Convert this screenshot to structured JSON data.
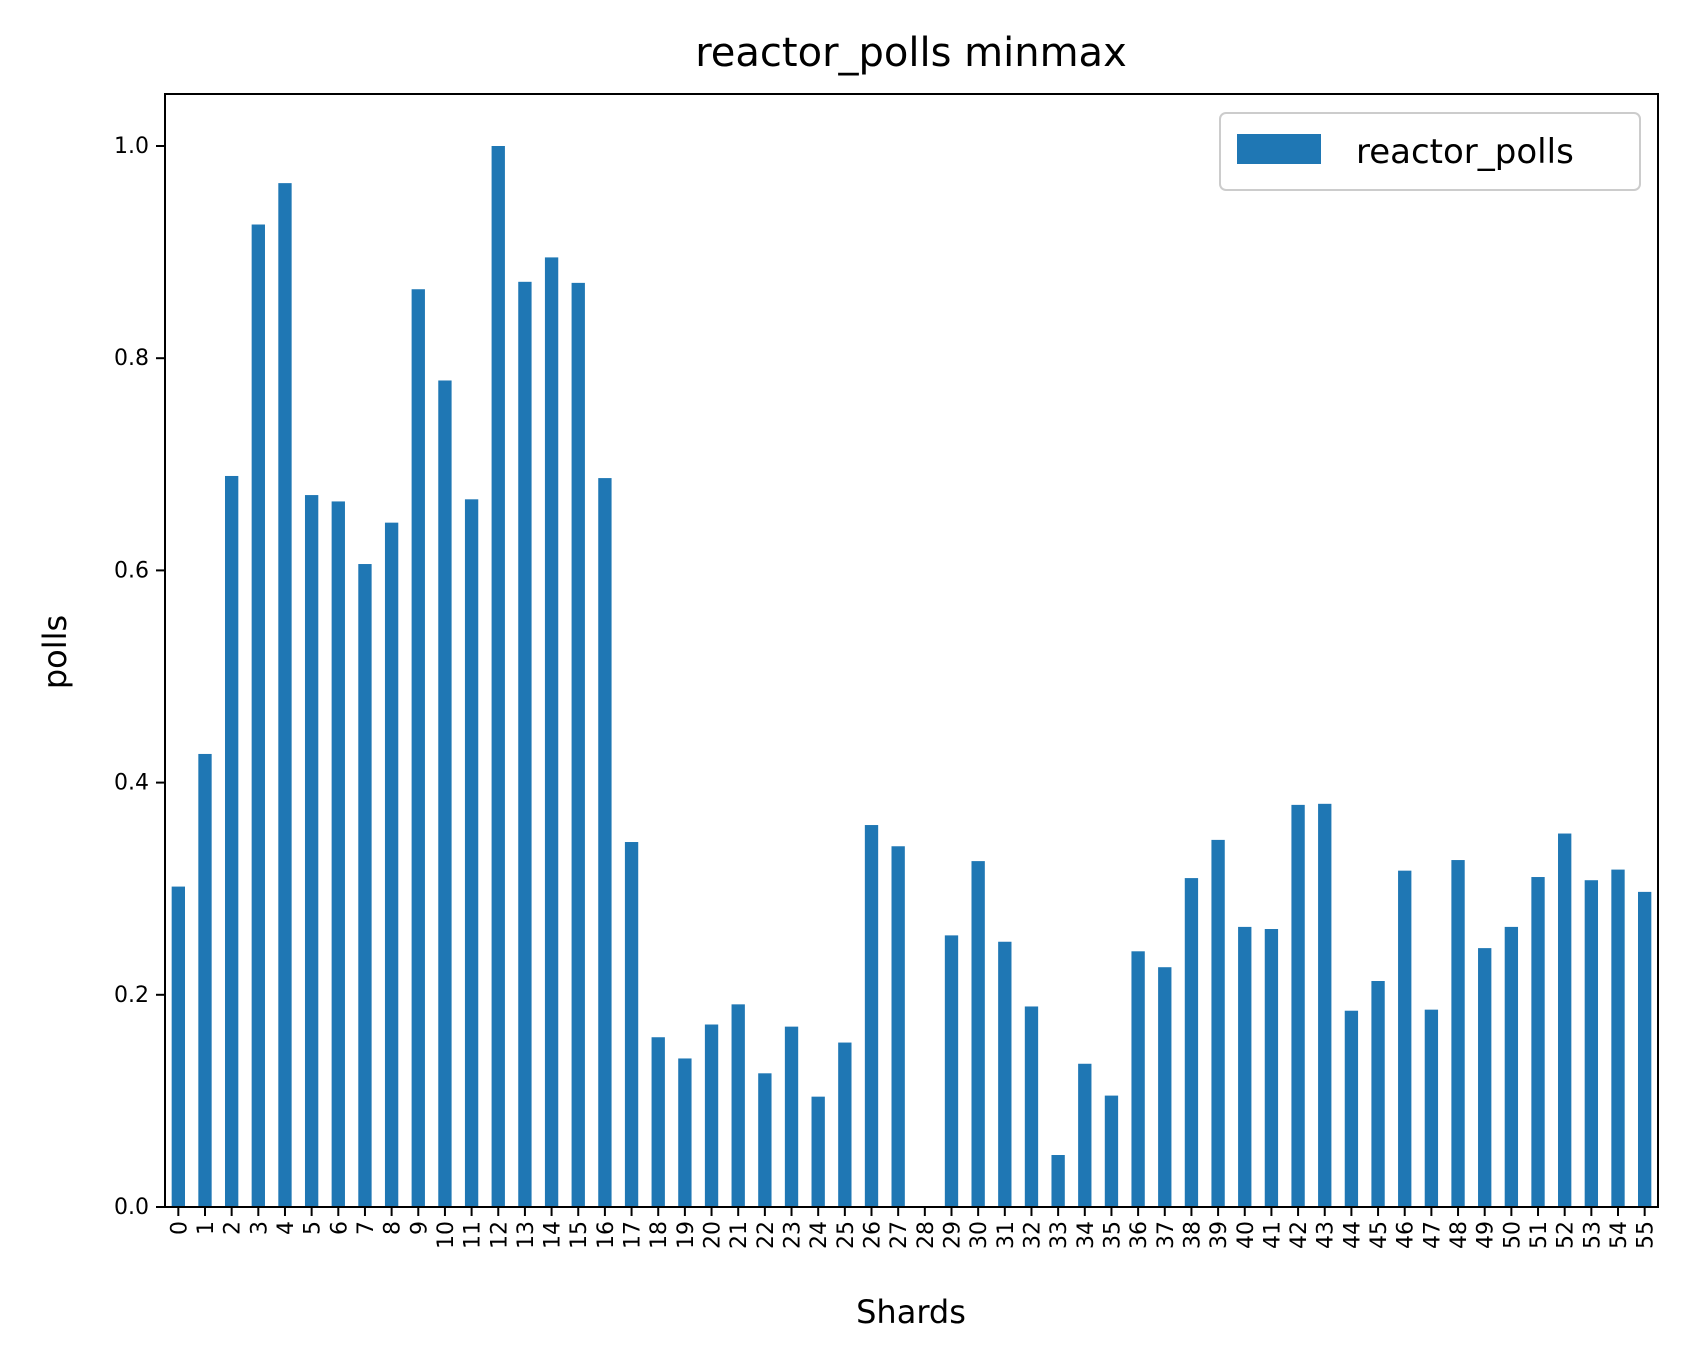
{
  "chart_data": {
    "type": "bar",
    "title": "reactor_polls minmax",
    "xlabel": "Shards",
    "ylabel": "polls",
    "ylim": [
      0,
      1.05
    ],
    "yticks": [
      0.0,
      0.2,
      0.4,
      0.6,
      0.8,
      1.0
    ],
    "ytick_labels": [
      "0.0",
      "0.2",
      "0.4",
      "0.6",
      "0.8",
      "1.0"
    ],
    "grid": false,
    "legend_position": "top-right",
    "categories": [
      "0",
      "1",
      "2",
      "3",
      "4",
      "5",
      "6",
      "7",
      "8",
      "9",
      "10",
      "11",
      "12",
      "13",
      "14",
      "15",
      "16",
      "17",
      "18",
      "19",
      "20",
      "21",
      "22",
      "23",
      "24",
      "25",
      "26",
      "27",
      "28",
      "29",
      "30",
      "31",
      "32",
      "33",
      "34",
      "35",
      "36",
      "37",
      "38",
      "39",
      "40",
      "41",
      "42",
      "43",
      "44",
      "45",
      "46",
      "47",
      "48",
      "49",
      "50",
      "51",
      "52",
      "53",
      "54",
      "55"
    ],
    "series": [
      {
        "name": "reactor_polls",
        "color": "#1f77b4",
        "values": [
          0.302,
          0.427,
          0.689,
          0.926,
          0.965,
          0.671,
          0.665,
          0.606,
          0.645,
          0.865,
          0.779,
          0.667,
          1.0,
          0.872,
          0.895,
          0.871,
          0.687,
          0.344,
          0.16,
          0.14,
          0.172,
          0.191,
          0.126,
          0.17,
          0.104,
          0.155,
          0.36,
          0.34,
          0.0,
          0.256,
          0.326,
          0.25,
          0.189,
          0.049,
          0.135,
          0.105,
          0.241,
          0.226,
          0.31,
          0.346,
          0.264,
          0.262,
          0.379,
          0.38,
          0.185,
          0.213,
          0.317,
          0.186,
          0.327,
          0.244,
          0.264,
          0.311,
          0.352,
          0.308,
          0.318,
          0.297
        ]
      }
    ]
  }
}
